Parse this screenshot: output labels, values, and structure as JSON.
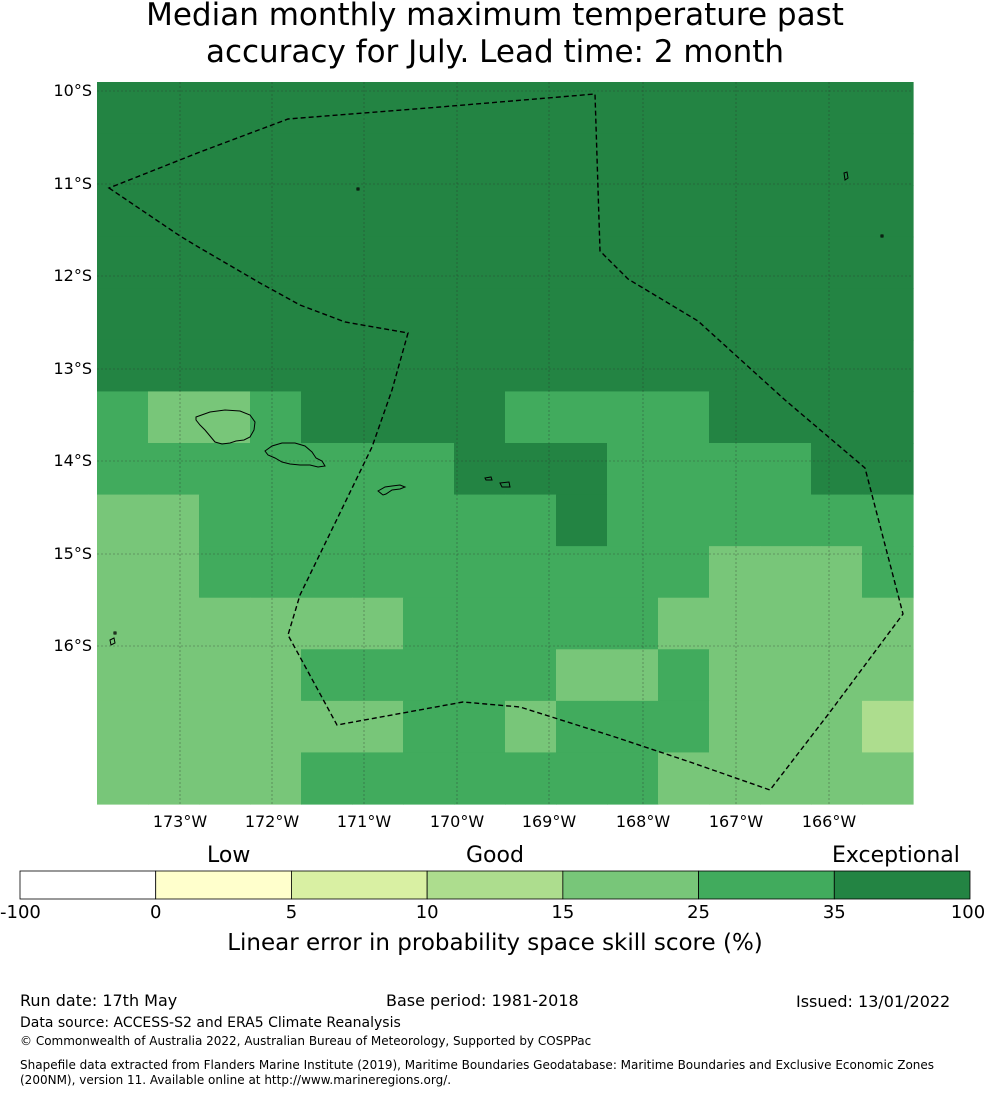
{
  "title": {
    "line1": "Median monthly maximum temperature past",
    "line2": "accuracy for July. Lead time: 2 month"
  },
  "map": {
    "lat_labels": [
      "10°S",
      "11°S",
      "12°S",
      "13°S",
      "14°S",
      "15°S",
      "16°S"
    ],
    "lon_labels": [
      "173°W",
      "172°W",
      "171°W",
      "170°W",
      "169°W",
      "168°W",
      "167°W",
      "166°W"
    ],
    "grid": [
      [
        35,
        35,
        35,
        35,
        35,
        35,
        35,
        35,
        35,
        35,
        35,
        35,
        35,
        35,
        35,
        35
      ],
      [
        35,
        35,
        35,
        35,
        35,
        35,
        35,
        35,
        35,
        35,
        35,
        35,
        35,
        35,
        35,
        35
      ],
      [
        35,
        35,
        35,
        35,
        35,
        35,
        35,
        35,
        35,
        35,
        35,
        35,
        35,
        35,
        35,
        35
      ],
      [
        35,
        35,
        35,
        35,
        35,
        35,
        35,
        35,
        35,
        35,
        35,
        35,
        35,
        35,
        35,
        35
      ],
      [
        35,
        35,
        35,
        35,
        35,
        35,
        35,
        35,
        35,
        35,
        35,
        35,
        35,
        35,
        35,
        35
      ],
      [
        35,
        35,
        35,
        35,
        35,
        35,
        35,
        35,
        35,
        35,
        35,
        35,
        35,
        35,
        35,
        35
      ],
      [
        25,
        15,
        15,
        25,
        35,
        35,
        35,
        35,
        25,
        25,
        25,
        25,
        35,
        35,
        35,
        35
      ],
      [
        25,
        25,
        25,
        25,
        25,
        25,
        25,
        35,
        35,
        35,
        25,
        25,
        25,
        25,
        35,
        35
      ],
      [
        15,
        15,
        25,
        25,
        25,
        25,
        25,
        25,
        25,
        35,
        25,
        25,
        25,
        25,
        25,
        25
      ],
      [
        15,
        15,
        25,
        25,
        25,
        25,
        25,
        25,
        25,
        25,
        25,
        25,
        15,
        15,
        15,
        25
      ],
      [
        15,
        15,
        15,
        15,
        15,
        15,
        25,
        25,
        25,
        25,
        25,
        15,
        15,
        15,
        15,
        15
      ],
      [
        15,
        15,
        15,
        15,
        25,
        25,
        25,
        25,
        25,
        15,
        15,
        25,
        15,
        15,
        15,
        15
      ],
      [
        15,
        15,
        15,
        15,
        15,
        15,
        25,
        25,
        15,
        25,
        25,
        25,
        15,
        15,
        15,
        10
      ],
      [
        15,
        15,
        15,
        15,
        25,
        25,
        25,
        25,
        25,
        25,
        25,
        15,
        15,
        15,
        15,
        15
      ]
    ],
    "colors": {
      "low": "#ffffff",
      "c0": "#ffffcc",
      "c5": "#d9f0a3",
      "c10": "#addd8e",
      "c15": "#78c679",
      "c25": "#41ab5d",
      "c35": "#238443"
    }
  },
  "colorbar": {
    "categories": [
      "Low",
      "Good",
      "Exceptional"
    ],
    "ticks": [
      "-100",
      "0",
      "5",
      "10",
      "15",
      "25",
      "35",
      "100"
    ],
    "colors": [
      "#ffffff",
      "#ffffcc",
      "#d9f0a3",
      "#addd8e",
      "#78c679",
      "#41ab5d",
      "#238443"
    ],
    "label": "Linear error in probability space skill score (%)"
  },
  "footer": {
    "run_date": "Run date: 17th May",
    "base_period": "Base period: 1981-2018",
    "issued": "Issued: 13/01/2022",
    "data_source": "Data source: ACCESS-S2 and ERA5 Climate Reanalysis",
    "copyright": "© Commonwealth of Australia 2022, Australian Bureau of Meteorology, Supported by COSPPac",
    "shapefile_line1": "Shapefile data extracted from Flanders Marine Institute (2019), Maritime Boundaries Geodatabase: Maritime Boundaries and Exclusive Economic Zones",
    "shapefile_line2": "(200NM), version 11. Available online at http://www.marineregions.org/."
  }
}
